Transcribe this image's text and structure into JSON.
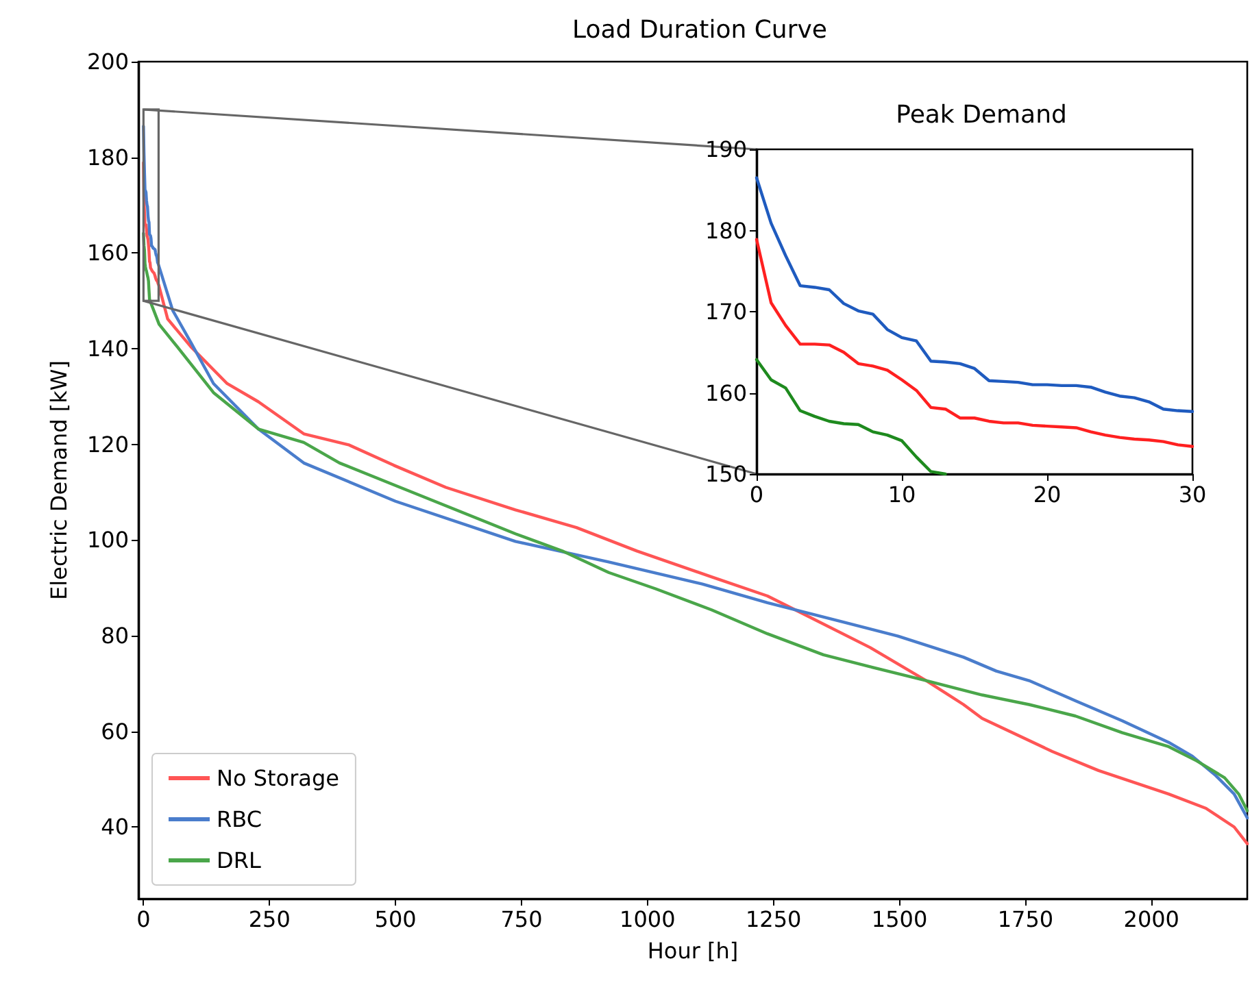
{
  "chart_data": [
    {
      "type": "line",
      "title": "Load Duration Curve",
      "xlabel": "Hour [h]",
      "ylabel": "Electric Demand [kW]",
      "xlim": [
        -10,
        2190
      ],
      "ylim": [
        25,
        200
      ],
      "xticks": [
        0,
        250,
        500,
        750,
        1000,
        1250,
        1500,
        1750,
        2000
      ],
      "yticks": [
        40,
        60,
        80,
        100,
        120,
        140,
        160,
        180,
        200
      ],
      "legend": "bottom left",
      "series": [
        {
          "name": "No Storage",
          "color": "#ff5555",
          "x": [
            0,
            1,
            2,
            3,
            4,
            5,
            6,
            7,
            8,
            9,
            10,
            11,
            12,
            13,
            14,
            15,
            16,
            17,
            18,
            19,
            20,
            21,
            22,
            23,
            24,
            25,
            26,
            27,
            28,
            29,
            30,
            48,
            94,
            166,
            228,
            318,
            407,
            497,
            600,
            738,
            859,
            979,
            1127,
            1238,
            1312,
            1442,
            1553,
            1627,
            1664,
            1803,
            1895,
            2034,
            2108,
            2164,
            2190
          ],
          "values": [
            178.9,
            171.1,
            168.3,
            166.0,
            166.0,
            165.9,
            165.0,
            163.6,
            163.3,
            162.8,
            161.6,
            160.3,
            158.2,
            158.0,
            156.9,
            156.9,
            156.5,
            156.3,
            156.3,
            156.0,
            155.9,
            155.8,
            155.7,
            155.2,
            154.8,
            154.5,
            154.3,
            154.2,
            154.0,
            153.6,
            153.4,
            146.2,
            140.4,
            132.7,
            128.9,
            122.2,
            119.9,
            115.6,
            111.0,
            106.3,
            102.6,
            97.7,
            92.3,
            88.3,
            84.4,
            77.5,
            70.6,
            65.6,
            62.7,
            55.8,
            51.8,
            46.9,
            43.9,
            40.0,
            36.5
          ]
        },
        {
          "name": "RBC",
          "color": "#4a7dcc",
          "x": [
            0,
            1,
            2,
            3,
            4,
            5,
            6,
            7,
            8,
            9,
            10,
            11,
            12,
            13,
            14,
            15,
            16,
            17,
            18,
            19,
            20,
            21,
            22,
            23,
            24,
            25,
            26,
            27,
            28,
            29,
            30,
            58,
            94,
            139,
            228,
            318,
            500,
            738,
            923,
            1109,
            1238,
            1386,
            1497,
            1627,
            1692,
            1757,
            1849,
            1942,
            2034,
            2081,
            2127,
            2164,
            2190
          ],
          "values": [
            186.5,
            180.9,
            176.9,
            173.2,
            173.0,
            172.7,
            171.0,
            170.1,
            169.7,
            167.8,
            166.8,
            166.4,
            163.9,
            163.8,
            163.6,
            163.0,
            161.5,
            161.4,
            161.3,
            161.0,
            161.0,
            160.9,
            160.9,
            160.7,
            160.1,
            159.6,
            159.4,
            158.9,
            158.0,
            157.8,
            157.7,
            148.0,
            141.3,
            132.7,
            123.2,
            116.1,
            108.1,
            99.7,
            95.4,
            90.8,
            86.9,
            82.9,
            79.9,
            75.5,
            72.6,
            70.6,
            66.4,
            62.2,
            57.7,
            54.8,
            50.8,
            46.9,
            41.9
          ]
        },
        {
          "name": "DRL",
          "color": "#4aa64a",
          "x": [
            0,
            1,
            2,
            3,
            4,
            5,
            6,
            7,
            8,
            9,
            10,
            11,
            12,
            13,
            31,
            67,
            103,
            139,
            228,
            318,
            389,
            500,
            738,
            831,
            923,
            1016,
            1127,
            1238,
            1349,
            1442,
            1553,
            1664,
            1757,
            1849,
            1942,
            2034,
            2090,
            2145,
            2173,
            2190
          ],
          "values": [
            164.1,
            161.6,
            160.6,
            157.8,
            157.1,
            156.5,
            156.2,
            156.1,
            155.2,
            154.8,
            154.1,
            152.1,
            150.3,
            150.0,
            145.1,
            140.4,
            135.6,
            130.8,
            123.2,
            120.4,
            116.1,
            111.4,
            101.3,
            97.7,
            93.2,
            89.8,
            85.4,
            80.4,
            76.0,
            73.5,
            70.6,
            67.6,
            65.6,
            63.2,
            59.7,
            56.8,
            53.8,
            50.3,
            46.9,
            43.4
          ]
        }
      ]
    },
    {
      "type": "line",
      "title": "Peak Demand",
      "xlim": [
        0,
        30
      ],
      "ylim": [
        150,
        190
      ],
      "xticks": [
        0,
        10,
        20,
        30
      ],
      "yticks": [
        150,
        160,
        170,
        180,
        190
      ],
      "series": [
        {
          "color": "#ff2020",
          "x": [
            0,
            1,
            2,
            3,
            4,
            5,
            6,
            7,
            8,
            9,
            10,
            11,
            12,
            13,
            14,
            15,
            16,
            17,
            18,
            19,
            20,
            21,
            22,
            23,
            24,
            25,
            26,
            27,
            28,
            29,
            30
          ],
          "values": [
            178.9,
            171.1,
            168.3,
            166.0,
            166.0,
            165.9,
            165.0,
            163.6,
            163.3,
            162.8,
            161.6,
            160.3,
            158.2,
            158.0,
            156.9,
            156.9,
            156.5,
            156.3,
            156.3,
            156.0,
            155.9,
            155.8,
            155.7,
            155.2,
            154.8,
            154.5,
            154.3,
            154.2,
            154.0,
            153.6,
            153.4
          ]
        },
        {
          "color": "#1f5bbf",
          "x": [
            0,
            1,
            2,
            3,
            4,
            5,
            6,
            7,
            8,
            9,
            10,
            11,
            12,
            13,
            14,
            15,
            16,
            17,
            18,
            19,
            20,
            21,
            22,
            23,
            24,
            25,
            26,
            27,
            28,
            29,
            30
          ],
          "values": [
            186.5,
            180.9,
            176.9,
            173.2,
            173.0,
            172.7,
            171.0,
            170.1,
            169.7,
            167.8,
            166.8,
            166.4,
            163.9,
            163.8,
            163.6,
            163.0,
            161.5,
            161.4,
            161.3,
            161.0,
            161.0,
            160.9,
            160.9,
            160.7,
            160.1,
            159.6,
            159.4,
            158.9,
            158.0,
            157.8,
            157.7
          ]
        },
        {
          "color": "#1e8a1e",
          "x": [
            0,
            1,
            2,
            3,
            4,
            5,
            6,
            7,
            8,
            9,
            10,
            11,
            12,
            13
          ],
          "values": [
            164.1,
            161.6,
            160.6,
            157.8,
            157.1,
            156.5,
            156.2,
            156.1,
            155.2,
            154.8,
            154.1,
            152.1,
            150.3,
            150.0
          ]
        }
      ]
    }
  ]
}
